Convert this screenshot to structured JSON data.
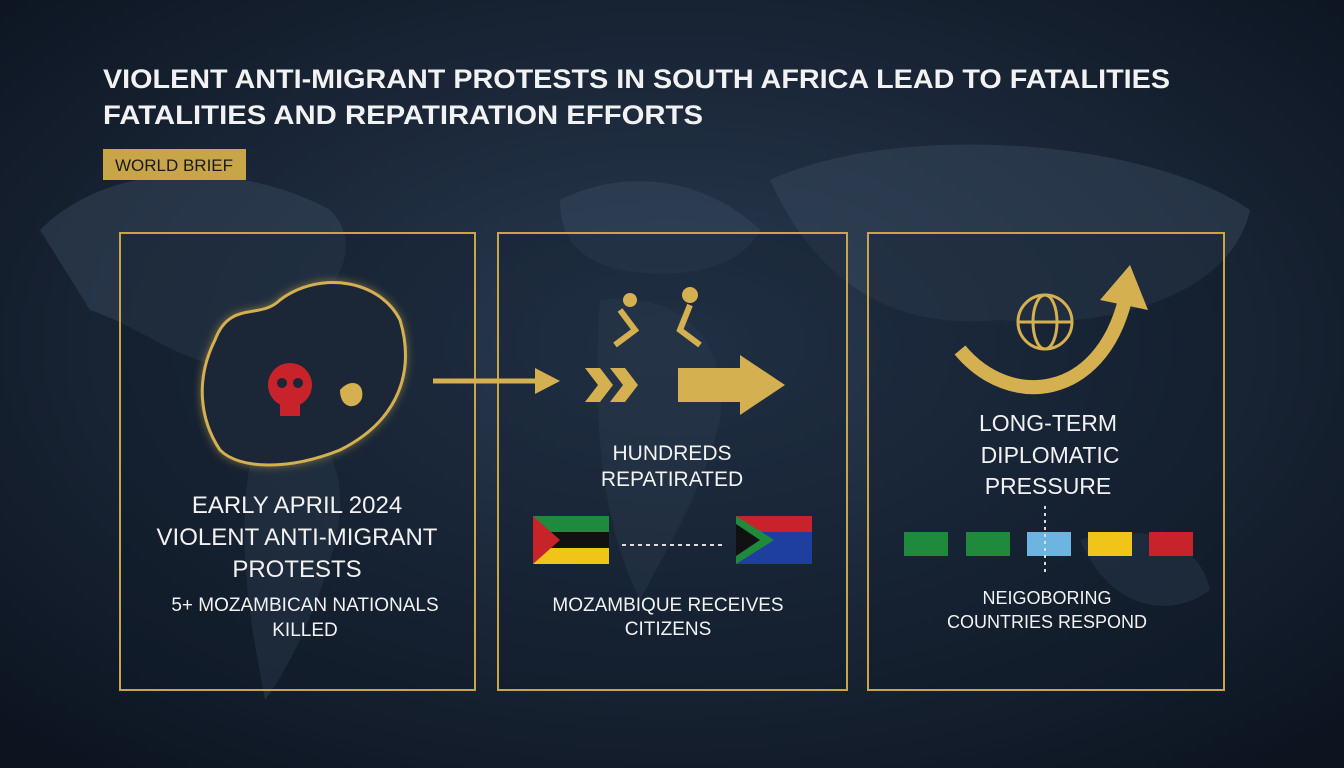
{
  "header": {
    "title_lines": [
      "VIOLENT ANTI-MIGRANT PROTESTS IN SOUTH AFRICA LEAD TO FATALITIES",
      "FATALITIES AND REPATIRATION EFFORTS"
    ],
    "badge": "WORLD BRIEF"
  },
  "panels": [
    {
      "heading": [
        "EARLY APRIL 2024",
        "VIOLENT ANTI-MIGRANT",
        "PROTESTS"
      ],
      "caption": [
        "5+ MOZAMBICAN NATIONALS",
        "KILLED"
      ]
    },
    {
      "heading": [
        "HUNDREDS",
        "REPATIRATED"
      ],
      "caption": [
        "MOZAMBIQUE RECEIVES",
        "CITIZENS"
      ]
    },
    {
      "heading": [
        "LONG-TERM",
        "DIPLOMATIC",
        "PRESSURE"
      ],
      "caption": [
        "NEIGOBORING",
        "COUNTRIES RESPOND"
      ]
    }
  ]
}
